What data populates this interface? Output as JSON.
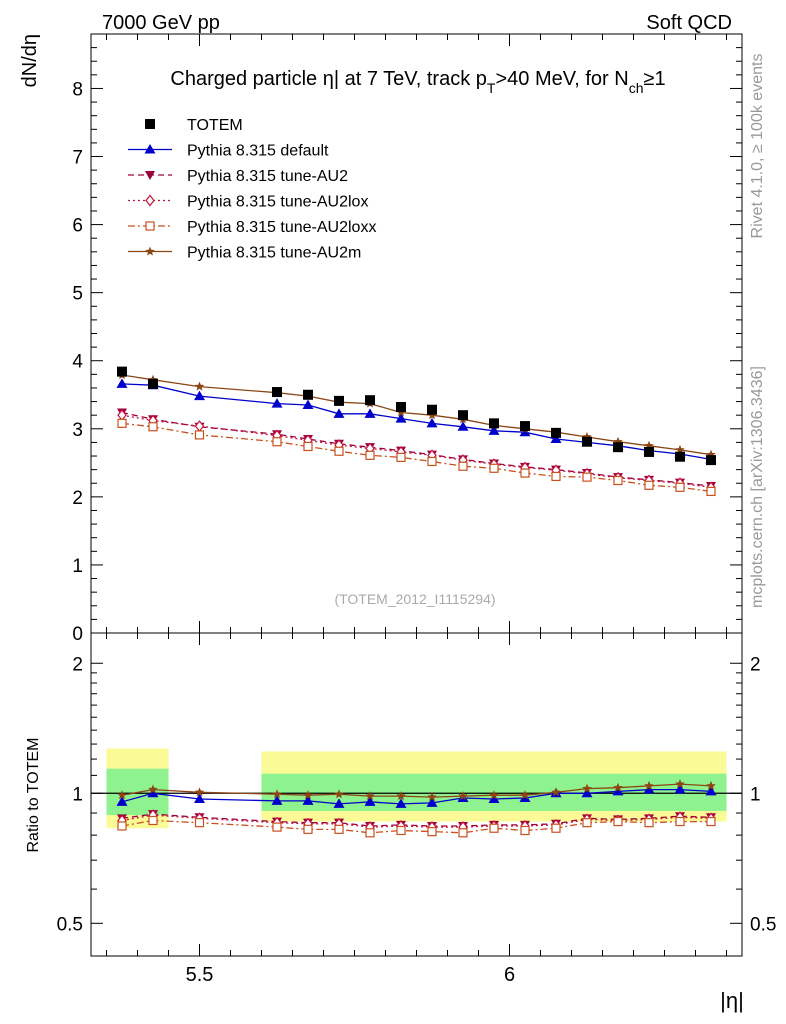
{
  "header": {
    "energy_label": "7000 GeV pp",
    "category_label": "Soft QCD",
    "side_label_rivet": "Rivet 4.1.0, ≥ 100k events",
    "side_label_mcplots": "mcplots.cern.ch [arXiv:1306.3436]"
  },
  "chart_data": [
    {
      "type": "line",
      "panel": "main",
      "title": "Charged particle |η| at 7 TeV, track p_T >40 MeV, for N_ch ≥1",
      "title_parts": {
        "prefix": "Charged particle ",
        "eta": "η",
        "mid1": "| at 7 TeV, track p",
        "sub_t": "T",
        "mid2": ">40 MeV, for N",
        "sub_ch": "ch",
        "suffix": "≥1"
      },
      "ylabel": "dN/dη",
      "xlim": [
        5.325,
        6.375
      ],
      "ylim": [
        0,
        8.8
      ],
      "yticks": [
        0,
        1,
        2,
        3,
        4,
        5,
        6,
        7,
        8
      ],
      "ytick_labels": [
        "0",
        "1",
        "2",
        "3",
        "4",
        "5",
        "6",
        "7",
        "8"
      ],
      "watermark": "(TOTEM_2012_I1115294)",
      "legend_position": "top-left",
      "x": [
        5.375,
        5.425,
        5.5,
        5.625,
        5.675,
        5.725,
        5.775,
        5.825,
        5.875,
        5.925,
        5.975,
        6.025,
        6.075,
        6.125,
        6.175,
        6.225,
        6.275,
        6.325
      ],
      "series": [
        {
          "name": "TOTEM",
          "color": "#000000",
          "marker": "square-filled",
          "line": "none",
          "x": [
            5.375,
            5.425,
            5.625,
            5.675,
            5.725,
            5.775,
            5.825,
            5.875,
            5.925,
            5.975,
            6.025,
            6.075,
            6.125,
            6.175,
            6.225,
            6.275,
            6.325
          ],
          "values": [
            3.84,
            3.66,
            3.54,
            3.5,
            3.41,
            3.42,
            3.32,
            3.28,
            3.2,
            3.08,
            3.04,
            2.94,
            2.81,
            2.73,
            2.66,
            2.59,
            2.54
          ]
        },
        {
          "name": "Pythia 8.315 default",
          "color": "#0000cc",
          "marker": "triangle-up-filled",
          "line": "solid",
          "values": [
            3.66,
            3.64,
            3.48,
            3.37,
            3.35,
            3.22,
            3.22,
            3.15,
            3.08,
            3.03,
            2.97,
            2.95,
            2.85,
            2.8,
            2.75,
            2.68,
            2.63,
            2.55
          ]
        },
        {
          "name": "Pythia 8.315 tune-AU2",
          "color": "#a0003c",
          "marker": "triangle-down-filled",
          "line": "dashed",
          "values": [
            3.24,
            3.14,
            3.03,
            2.92,
            2.85,
            2.78,
            2.73,
            2.68,
            2.62,
            2.55,
            2.49,
            2.44,
            2.4,
            2.35,
            2.29,
            2.25,
            2.21,
            2.16
          ]
        },
        {
          "name": "Pythia 8.315 tune-AU2lox",
          "color": "#c0143c",
          "marker": "diamond-open",
          "line": "dotted",
          "values": [
            3.2,
            3.12,
            3.04,
            2.9,
            2.83,
            2.76,
            2.71,
            2.66,
            2.61,
            2.54,
            2.48,
            2.43,
            2.39,
            2.34,
            2.28,
            2.24,
            2.2,
            2.14
          ]
        },
        {
          "name": "Pythia 8.315 tune-AU2loxx",
          "color": "#c8501e",
          "marker": "square-open",
          "line": "dashdot",
          "values": [
            3.08,
            3.03,
            2.91,
            2.81,
            2.74,
            2.67,
            2.61,
            2.58,
            2.52,
            2.45,
            2.42,
            2.35,
            2.3,
            2.29,
            2.24,
            2.17,
            2.14,
            2.08
          ]
        },
        {
          "name": "Pythia 8.315 tune-AU2m",
          "color": "#8c4614",
          "marker": "star",
          "line": "solid",
          "values": [
            3.79,
            3.72,
            3.62,
            3.53,
            3.48,
            3.39,
            3.37,
            3.24,
            3.2,
            3.14,
            3.05,
            3.0,
            2.95,
            2.88,
            2.81,
            2.75,
            2.69,
            2.62
          ]
        }
      ]
    },
    {
      "type": "line",
      "panel": "ratio",
      "ylabel": "Ratio to TOTEM",
      "xlabel": "|η|",
      "yscale": "log",
      "xlim": [
        5.325,
        6.375
      ],
      "ylim": [
        0.42,
        2.35
      ],
      "yticks": [
        0.5,
        1,
        2
      ],
      "ytick_labels": [
        "0.5",
        "1",
        "2"
      ],
      "xticks": [
        5.5,
        6
      ],
      "xtick_labels": [
        "5.5",
        "6"
      ],
      "reference_line": 1.0,
      "bands": [
        {
          "x_from": 5.35,
          "x_to": 5.45,
          "inner": [
            0.89,
            1.14
          ],
          "outer": [
            0.83,
            1.27
          ]
        },
        {
          "x_from": 5.6,
          "x_to": 6.35,
          "inner": [
            0.91,
            1.11
          ],
          "outer": [
            0.86,
            1.25
          ]
        }
      ],
      "band_colors": {
        "inner": "#8ef28e",
        "outer": "#fafa96"
      },
      "series": [
        {
          "name": "Pythia 8.315 default",
          "values": [
            0.955,
            1.0,
            0.97,
            0.96,
            0.96,
            0.945,
            0.955,
            0.945,
            0.95,
            0.975,
            0.97,
            0.975,
            1.0,
            1.0,
            1.01,
            1.02,
            1.02,
            1.01
          ]
        },
        {
          "name": "Pythia 8.315 tune-AU2",
          "values": [
            0.875,
            0.895,
            0.88,
            0.86,
            0.855,
            0.855,
            0.84,
            0.845,
            0.84,
            0.84,
            0.845,
            0.845,
            0.85,
            0.875,
            0.87,
            0.875,
            0.885,
            0.88
          ]
        },
        {
          "name": "Pythia 8.315 tune-AU2lox",
          "values": [
            0.865,
            0.89,
            0.875,
            0.855,
            0.85,
            0.85,
            0.835,
            0.84,
            0.835,
            0.835,
            0.84,
            0.84,
            0.845,
            0.87,
            0.865,
            0.87,
            0.88,
            0.875
          ]
        },
        {
          "name": "Pythia 8.315 tune-AU2loxx",
          "values": [
            0.84,
            0.865,
            0.855,
            0.835,
            0.825,
            0.825,
            0.81,
            0.82,
            0.815,
            0.81,
            0.83,
            0.82,
            0.83,
            0.855,
            0.86,
            0.855,
            0.86,
            0.86
          ]
        },
        {
          "name": "Pythia 8.315 tune-AU2m",
          "values": [
            0.99,
            1.02,
            1.005,
            0.995,
            0.99,
            0.995,
            0.985,
            0.985,
            0.98,
            0.985,
            0.99,
            0.99,
            1.005,
            1.025,
            1.03,
            1.04,
            1.05,
            1.04
          ]
        }
      ]
    }
  ]
}
